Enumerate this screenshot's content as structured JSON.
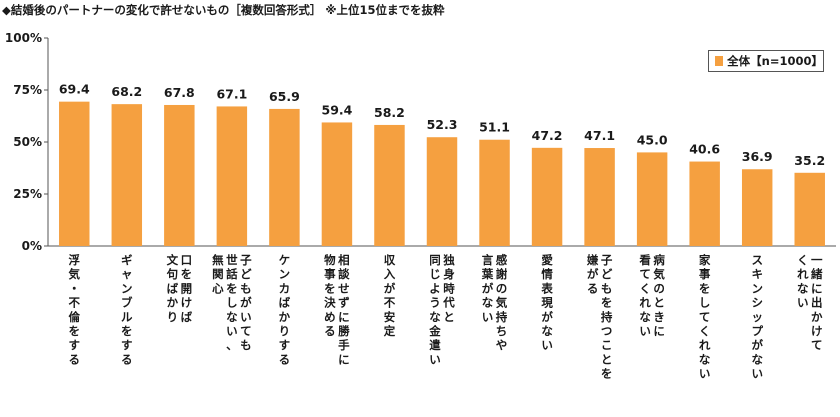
{
  "title": "◆結婚後のパートナーの変化で許せないもの［複数回答形式］ ※上位15位までを抜粋",
  "legend": {
    "label": "全体【n=1000】"
  },
  "colors": {
    "bar": "#f5a040",
    "axis": "#555555",
    "grid": "#bbbbbb"
  },
  "chart_data": {
    "type": "bar",
    "title": "◆結婚後のパートナーの変化で許せないもの［複数回答形式］ ※上位15位までを抜粋",
    "ylim": [
      0,
      100
    ],
    "yticks": [
      "0%",
      "25%",
      "50%",
      "75%",
      "100%"
    ],
    "grid": false,
    "legend_position": "top-right",
    "categories": [
      [
        "浮気・不倫をする"
      ],
      [
        "ギャンブルをする"
      ],
      [
        "口を開けば",
        "文句ばかり"
      ],
      [
        "子どもがいても",
        "世話をしない、",
        "無関心"
      ],
      [
        "ケンカばかりする"
      ],
      [
        "相談せずに勝手に",
        "物事を決める"
      ],
      [
        "収入が不安定"
      ],
      [
        "独身時代と",
        "同じような金遣い"
      ],
      [
        "感謝の気持ちや",
        "言葉がない"
      ],
      [
        "愛情表現がない"
      ],
      [
        "子どもを持つことを",
        "嫌がる"
      ],
      [
        "病気のときに",
        "看てくれない"
      ],
      [
        "家事をしてくれない"
      ],
      [
        "スキンシップがない"
      ],
      [
        "一緒に出かけて",
        "くれない"
      ]
    ],
    "series": [
      {
        "name": "全体【n=1000】",
        "values": [
          69.4,
          68.2,
          67.8,
          67.1,
          65.9,
          59.4,
          58.2,
          52.3,
          51.1,
          47.2,
          47.1,
          45.0,
          40.6,
          36.9,
          35.2
        ]
      }
    ]
  }
}
